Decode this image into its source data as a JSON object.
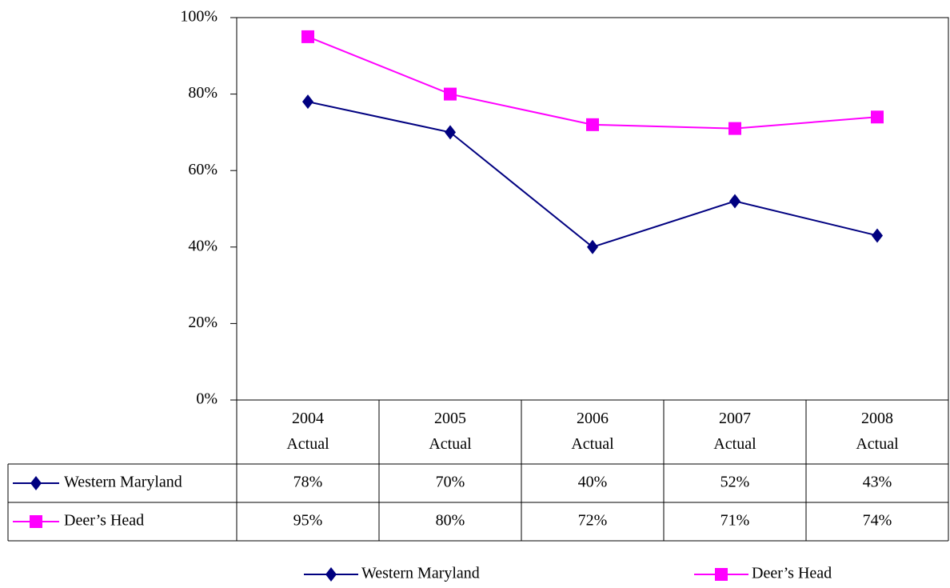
{
  "chart_data": {
    "type": "line",
    "categories": [
      "2004 Actual",
      "2005 Actual",
      "2006 Actual",
      "2007 Actual",
      "2008 Actual"
    ],
    "series": [
      {
        "name": "Western Maryland",
        "color": "#000080",
        "marker": "diamond",
        "values": [
          78,
          70,
          40,
          52,
          43
        ],
        "value_labels": [
          "78%",
          "70%",
          "40%",
          "52%",
          "43%"
        ]
      },
      {
        "name": "Deer’s Head",
        "color": "#ff00ff",
        "marker": "square",
        "values": [
          95,
          80,
          72,
          71,
          74
        ],
        "value_labels": [
          "95%",
          "80%",
          "72%",
          "71%",
          "74%"
        ]
      }
    ],
    "ylim": [
      0,
      100
    ],
    "yticks": [
      {
        "value": 0,
        "label": "0%"
      },
      {
        "value": 20,
        "label": "20%"
      },
      {
        "value": 40,
        "label": "40%"
      },
      {
        "value": 60,
        "label": "60%"
      },
      {
        "value": 80,
        "label": "80%"
      },
      {
        "value": 100,
        "label": "100%"
      }
    ]
  }
}
